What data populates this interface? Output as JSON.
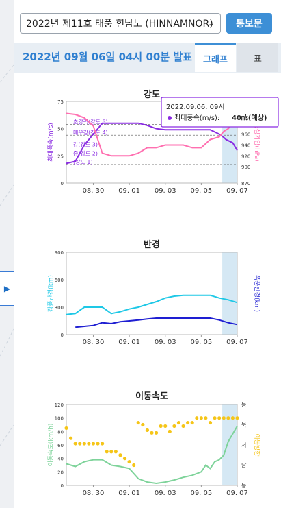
{
  "typhoon_select": {
    "value": "2022년 제11호 태풍 힌남노 (HINNAMNOR)"
  },
  "view_button": "통보문",
  "announcement": "2022년 09월 06일 04시 00분 발표",
  "tabs": {
    "graph": "그래프",
    "table": "표"
  },
  "x_ticks": [
    "08. 30",
    "09. 01",
    "09. 03",
    "09. 05",
    "09. 07"
  ],
  "chart_data": [
    {
      "type": "line",
      "title": "강도",
      "ylabel": "최대풍속(m/s)",
      "y2label": "중심기압(hPa)",
      "ylim": [
        0,
        75
      ],
      "y2lim": [
        870,
        1020
      ],
      "yticks": [
        0,
        25,
        50,
        75
      ],
      "y2ticks": [
        870,
        900,
        920,
        940,
        960,
        980,
        1000,
        1020
      ],
      "xlim": [
        "2022-08-28 12:00",
        "2022-09-07 00:00"
      ],
      "forecast_from": "2022-09-06 04:00",
      "intensity_levels": [
        {
          "label": "초강력(강도 5)",
          "value": 54
        },
        {
          "label": "매우강(강도 4)",
          "value": 44
        },
        {
          "label": "강(강도 3)",
          "value": 33
        },
        {
          "label": "중(강도 2)",
          "value": 25
        },
        {
          "label": "(강도 1)",
          "value": 17
        }
      ],
      "series": [
        {
          "name": "최대풍속(m/s)",
          "color": "#8a2be2",
          "x": [
            "2022-08-28 12:00",
            "2022-08-29 00:00",
            "2022-08-29 12:00",
            "2022-08-30 00:00",
            "2022-08-30 12:00",
            "2022-08-31 00:00",
            "2022-08-31 12:00",
            "2022-09-01 00:00",
            "2022-09-01 12:00",
            "2022-09-02 00:00",
            "2022-09-02 12:00",
            "2022-09-03 00:00",
            "2022-09-03 12:00",
            "2022-09-04 00:00",
            "2022-09-04 12:00",
            "2022-09-05 00:00",
            "2022-09-05 12:00",
            "2022-09-06 00:00",
            "2022-09-06 06:00",
            "2022-09-06 09:00",
            "2022-09-06 18:00",
            "2022-09-07 00:00"
          ],
          "y": [
            18,
            20,
            35,
            45,
            55,
            55,
            55,
            55,
            55,
            53,
            50,
            49,
            49,
            49,
            49,
            49,
            49,
            45,
            42,
            40,
            37,
            30
          ]
        },
        {
          "name": "중심기압(hPa)",
          "color": "#ff6fb0",
          "x": [
            "2022-08-28 12:00",
            "2022-08-29 00:00",
            "2022-08-29 12:00",
            "2022-08-30 00:00",
            "2022-08-30 12:00",
            "2022-08-31 00:00",
            "2022-08-31 12:00",
            "2022-09-01 00:00",
            "2022-09-01 12:00",
            "2022-09-02 00:00",
            "2022-09-02 12:00",
            "2022-09-03 00:00",
            "2022-09-03 12:00",
            "2022-09-04 00:00",
            "2022-09-04 12:00",
            "2022-09-05 00:00",
            "2022-09-05 12:00",
            "2022-09-06 00:00",
            "2022-09-06 06:00",
            "2022-09-06 12:00",
            "2022-09-06 18:00",
            "2022-09-07 00:00"
          ],
          "y": [
            998,
            996,
            990,
            975,
            925,
            920,
            920,
            920,
            925,
            935,
            935,
            940,
            940,
            940,
            935,
            935,
            950,
            955,
            965,
            970,
            980,
            985
          ]
        }
      ],
      "tooltip": {
        "date": "2022.09.06. 09시",
        "series": "최대풍속(m/s)",
        "value": "40㎧(예상)"
      }
    },
    {
      "type": "line",
      "title": "반경",
      "ylabel": "강풍반경(km)",
      "y2label": "폭풍반경(km)",
      "ylim": [
        0,
        900
      ],
      "yticks": [
        0,
        300,
        600,
        900
      ],
      "xlim": [
        "2022-08-28 12:00",
        "2022-09-07 00:00"
      ],
      "forecast_from": "2022-09-06 04:00",
      "series": [
        {
          "name": "강풍반경(km)",
          "color": "#1ec8e6",
          "x": [
            "2022-08-28 12:00",
            "2022-08-29 00:00",
            "2022-08-29 12:00",
            "2022-08-30 00:00",
            "2022-08-30 12:00",
            "2022-08-31 00:00",
            "2022-08-31 12:00",
            "2022-09-01 00:00",
            "2022-09-01 12:00",
            "2022-09-02 00:00",
            "2022-09-02 12:00",
            "2022-09-03 00:00",
            "2022-09-03 12:00",
            "2022-09-04 00:00",
            "2022-09-04 12:00",
            "2022-09-05 00:00",
            "2022-09-05 12:00",
            "2022-09-06 00:00",
            "2022-09-06 12:00",
            "2022-09-07 00:00"
          ],
          "y": [
            220,
            230,
            300,
            300,
            300,
            230,
            250,
            280,
            300,
            330,
            360,
            400,
            420,
            430,
            430,
            430,
            430,
            400,
            380,
            350
          ]
        },
        {
          "name": "폭풍반경(km)",
          "color": "#1e1ed2",
          "x": [
            "2022-08-29 00:00",
            "2022-08-29 12:00",
            "2022-08-30 00:00",
            "2022-08-30 12:00",
            "2022-08-31 00:00",
            "2022-08-31 12:00",
            "2022-09-01 00:00",
            "2022-09-01 12:00",
            "2022-09-02 00:00",
            "2022-09-02 12:00",
            "2022-09-03 00:00",
            "2022-09-03 12:00",
            "2022-09-04 00:00",
            "2022-09-04 12:00",
            "2022-09-05 00:00",
            "2022-09-05 12:00",
            "2022-09-06 00:00",
            "2022-09-06 12:00",
            "2022-09-07 00:00"
          ],
          "y": [
            80,
            90,
            100,
            130,
            120,
            140,
            150,
            160,
            170,
            180,
            180,
            180,
            180,
            180,
            180,
            180,
            160,
            130,
            110
          ]
        }
      ]
    },
    {
      "type": "line",
      "title": "이동속도",
      "ylabel": "이동속도(km/h)",
      "y2label": "이동방향",
      "ylim": [
        0,
        120
      ],
      "yticks": [
        0,
        20,
        40,
        60,
        80,
        100,
        120
      ],
      "y2ticks": [
        "동",
        "남",
        "서",
        "북",
        "동"
      ],
      "xlim": [
        "2022-08-28 12:00",
        "2022-09-07 00:00"
      ],
      "forecast_from": "2022-09-06 04:00",
      "series": [
        {
          "name": "이동속도(km/h)",
          "color": "#7ed39a",
          "x": [
            "2022-08-28 12:00",
            "2022-08-29 00:00",
            "2022-08-29 12:00",
            "2022-08-30 00:00",
            "2022-08-30 12:00",
            "2022-08-31 00:00",
            "2022-08-31 12:00",
            "2022-09-01 00:00",
            "2022-09-01 12:00",
            "2022-09-02 00:00",
            "2022-09-02 12:00",
            "2022-09-03 00:00",
            "2022-09-03 12:00",
            "2022-09-04 00:00",
            "2022-09-04 12:00",
            "2022-09-05 00:00",
            "2022-09-05 06:00",
            "2022-09-05 12:00",
            "2022-09-05 18:00",
            "2022-09-06 00:00",
            "2022-09-06 06:00",
            "2022-09-06 12:00",
            "2022-09-07 00:00"
          ],
          "y": [
            32,
            28,
            35,
            38,
            38,
            30,
            28,
            25,
            10,
            5,
            3,
            5,
            8,
            12,
            15,
            20,
            30,
            25,
            35,
            38,
            45,
            65,
            88
          ]
        },
        {
          "name": "이동방향",
          "color": "#f5c518",
          "x": [
            "2022-08-28 12:00",
            "2022-08-28 18:00",
            "2022-08-29 00:00",
            "2022-08-29 06:00",
            "2022-08-29 12:00",
            "2022-08-29 18:00",
            "2022-08-30 00:00",
            "2022-08-30 06:00",
            "2022-08-30 12:00",
            "2022-08-30 18:00",
            "2022-08-31 00:00",
            "2022-08-31 06:00",
            "2022-08-31 12:00",
            "2022-08-31 18:00",
            "2022-09-01 00:00",
            "2022-09-01 06:00",
            "2022-09-01 12:00",
            "2022-09-01 18:00",
            "2022-09-02 00:00",
            "2022-09-02 06:00",
            "2022-09-02 12:00",
            "2022-09-02 18:00",
            "2022-09-03 00:00",
            "2022-09-03 06:00",
            "2022-09-03 12:00",
            "2022-09-03 18:00",
            "2022-09-04 00:00",
            "2022-09-04 06:00",
            "2022-09-04 12:00",
            "2022-09-04 18:00",
            "2022-09-05 00:00",
            "2022-09-05 06:00",
            "2022-09-05 12:00",
            "2022-09-05 18:00",
            "2022-09-06 00:00",
            "2022-09-06 06:00",
            "2022-09-06 12:00",
            "2022-09-06 18:00",
            "2022-09-07 00:00"
          ],
          "y": [
            85,
            70,
            62,
            62,
            62,
            62,
            62,
            62,
            62,
            50,
            50,
            50,
            45,
            40,
            35,
            30,
            93,
            90,
            82,
            78,
            78,
            88,
            88,
            80,
            88,
            93,
            88,
            93,
            93,
            100,
            100,
            100,
            93,
            100,
            100,
            100,
            100,
            100,
            100
          ]
        }
      ]
    }
  ]
}
